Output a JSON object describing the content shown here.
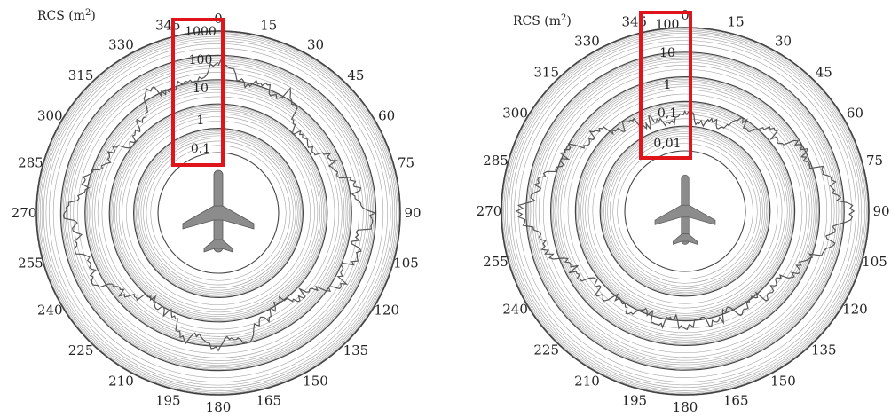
{
  "chart_data": [
    {
      "type": "polar",
      "title": "RCS (m",
      "title_sup": "2",
      "title_close": ")",
      "angle_labels": [
        "0",
        "15",
        "30",
        "45",
        "60",
        "75",
        "90",
        "105",
        "120",
        "135",
        "150",
        "165",
        "180",
        "195",
        "210",
        "225",
        "240",
        "255",
        "270",
        "285",
        "300",
        "315",
        "330",
        "345"
      ],
      "radial_tick_labels": [
        "1000",
        "100",
        "10",
        "1",
        "0.1"
      ],
      "radial_scale": "log",
      "radial_range": [
        0.01,
        10000
      ],
      "highlight_color": "#e0141b",
      "series": [
        {
          "angles": [
            0,
            15,
            30,
            45,
            60,
            75,
            90,
            105,
            120,
            135,
            150,
            165,
            180,
            195,
            210,
            225,
            240,
            255,
            270,
            285,
            300,
            315,
            330,
            345
          ],
          "values": [
            200,
            30,
            60,
            3,
            8,
            40,
            300,
            100,
            80,
            5,
            2,
            20,
            30,
            20,
            2,
            5,
            80,
            100,
            300,
            40,
            8,
            3,
            60,
            30
          ]
        }
      ]
    },
    {
      "type": "polar",
      "title": "RCS (m",
      "title_sup": "2",
      "title_close": ")",
      "angle_labels": [
        "0",
        "15",
        "30",
        "45",
        "60",
        "75",
        "90",
        "105",
        "120",
        "135",
        "150",
        "165",
        "180",
        "195",
        "210",
        "225",
        "240",
        "255",
        "270",
        "285",
        "300",
        "315",
        "330",
        "345"
      ],
      "radial_tick_labels": [
        "100",
        "10",
        "1",
        "0,1",
        "0,01"
      ],
      "radial_scale": "log",
      "radial_range": [
        0.001,
        1000
      ],
      "highlight_color": "#e0141b",
      "series": [
        {
          "angles": [
            0,
            15,
            30,
            45,
            60,
            75,
            90,
            105,
            120,
            135,
            150,
            165,
            180,
            195,
            210,
            225,
            240,
            255,
            270,
            285,
            300,
            315,
            330,
            345
          ],
          "values": [
            0.05,
            0.03,
            0.1,
            0.4,
            2,
            10,
            100,
            10,
            1,
            0.5,
            0.3,
            0.3,
            0.3,
            0.3,
            0.3,
            0.5,
            1,
            10,
            100,
            10,
            2,
            0.4,
            0.1,
            0.03
          ]
        }
      ]
    }
  ]
}
